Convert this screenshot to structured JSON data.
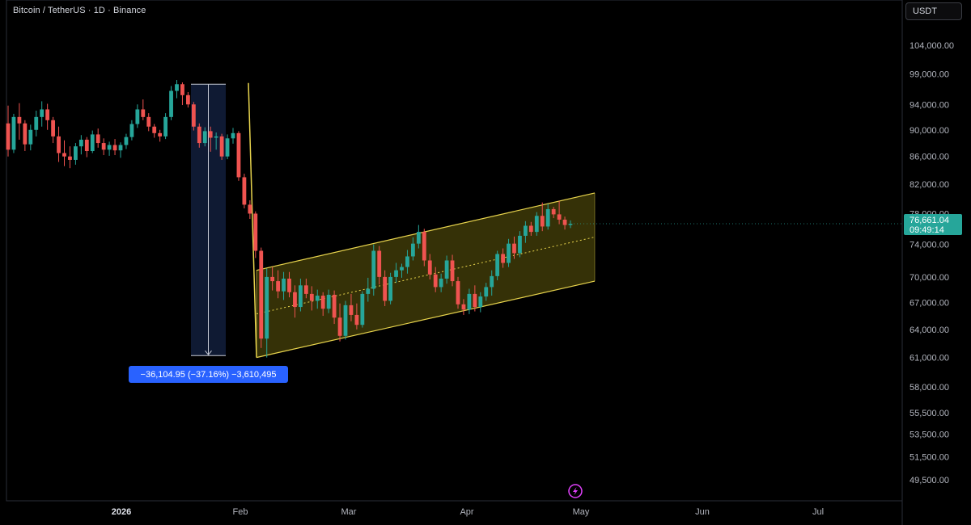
{
  "header": {
    "symbol_title": "Bitcoin / TetherUS · 1D · Binance",
    "currency_label": "USDT"
  },
  "colors": {
    "background": "#000000",
    "up_candle": "#26a69a",
    "down_candle": "#ef5350",
    "channel_line": "#e8d44d",
    "channel_fill": "#3b3608",
    "measure_fill": "#0f1a33",
    "measure_label_bg": "#2962ff",
    "price_tag_bg": "#26a69a",
    "axis_text": "#b2b5be"
  },
  "icons": {
    "bottom_center": "lightning-icon"
  },
  "chart_data": {
    "type": "candlestick",
    "title": "Bitcoin / TetherUS · 1D · Binance",
    "y_axis": {
      "ticks": [
        "104,000.00",
        "99,000.00",
        "94,000.00",
        "90,000.00",
        "86,000.00",
        "82,000.00",
        "78,000.00",
        "74,000.00",
        "70,000.00",
        "67,000.00",
        "64,000.00",
        "61,000.00",
        "58,000.00",
        "55,500.00",
        "53,500.00",
        "51,500.00",
        "49,500.00"
      ],
      "tick_values": [
        104000,
        99000,
        94000,
        90000,
        86000,
        82000,
        78000,
        74000,
        70000,
        67000,
        64000,
        61000,
        58000,
        55500,
        53500,
        51500,
        49500
      ],
      "scale": "log"
    },
    "x_axis": {
      "ticks": [
        "2026",
        "Feb",
        "Mar",
        "Apr",
        "May",
        "Jun",
        "Jul"
      ],
      "bold_ticks": [
        "2026"
      ]
    },
    "last_price": {
      "price": "76,661.04",
      "countdown": "09:49:14"
    },
    "measure": {
      "label": "−36,104.95 (−37.16%) −3,610,495",
      "from_price": 97300,
      "to_price": 61200
    },
    "channel": {
      "lower_start": 61000,
      "lower_end": 69500,
      "upper_start": 70800,
      "upper_end": 80800
    },
    "sell_line": {
      "from_price": 97500,
      "to_price": 61000
    },
    "candles": [
      [
        91000,
        93800,
        86000,
        87000
      ],
      [
        87000,
        92500,
        86500,
        92000
      ],
      [
        92000,
        94200,
        88500,
        91000
      ],
      [
        91000,
        91500,
        86800,
        87800
      ],
      [
        87800,
        90800,
        86900,
        90000
      ],
      [
        90000,
        93000,
        89000,
        92000
      ],
      [
        92000,
        94500,
        90500,
        93200
      ],
      [
        93200,
        94100,
        90000,
        91500
      ],
      [
        91500,
        92000,
        88000,
        89000
      ],
      [
        89000,
        90500,
        85200,
        86500
      ],
      [
        86500,
        88400,
        84600,
        86000
      ],
      [
        86000,
        87500,
        84300,
        85500
      ],
      [
        85500,
        88000,
        84800,
        87500
      ],
      [
        87500,
        89200,
        86300,
        88500
      ],
      [
        88500,
        88900,
        85900,
        86800
      ],
      [
        86800,
        89900,
        86500,
        89300
      ],
      [
        89300,
        90200,
        87300,
        88000
      ],
      [
        88000,
        88700,
        86200,
        87000
      ],
      [
        87000,
        88200,
        86100,
        87700
      ],
      [
        87700,
        88600,
        86200,
        86900
      ],
      [
        86900,
        88100,
        85800,
        87700
      ],
      [
        87700,
        89400,
        87100,
        88900
      ],
      [
        88900,
        91500,
        88400,
        90900
      ],
      [
        90900,
        94000,
        90300,
        93200
      ],
      [
        93200,
        94800,
        91500,
        92000
      ],
      [
        92000,
        92600,
        89800,
        90500
      ],
      [
        90500,
        90900,
        88800,
        89500
      ],
      [
        89500,
        90000,
        88200,
        89000
      ],
      [
        89000,
        92600,
        88600,
        92000
      ],
      [
        92000,
        97000,
        91500,
        96200
      ],
      [
        96200,
        98000,
        95000,
        97300
      ],
      [
        97300,
        97600,
        93900,
        95500
      ],
      [
        95500,
        96000,
        93500,
        94000
      ],
      [
        94000,
        94400,
        89900,
        90500
      ],
      [
        90500,
        91000,
        87300,
        88000
      ],
      [
        88000,
        90400,
        87500,
        89800
      ],
      [
        89800,
        90500,
        86700,
        88800
      ],
      [
        88800,
        89600,
        87000,
        89000
      ],
      [
        89000,
        89400,
        85500,
        86000
      ],
      [
        86000,
        89300,
        85600,
        88700
      ],
      [
        88700,
        90300,
        87900,
        89500
      ],
      [
        89500,
        89800,
        82500,
        83000
      ],
      [
        83000,
        83500,
        78700,
        79200
      ],
      [
        79200,
        79800,
        77300,
        78000
      ],
      [
        78000,
        78300,
        72300,
        73200
      ],
      [
        73200,
        73600,
        62000,
        63000
      ],
      [
        63000,
        71000,
        61000,
        70000
      ],
      [
        70000,
        71200,
        68400,
        69500
      ],
      [
        69500,
        70800,
        67500,
        68300
      ],
      [
        68300,
        70600,
        67300,
        69800
      ],
      [
        69800,
        70600,
        67600,
        68200
      ],
      [
        68200,
        69000,
        65300,
        66500
      ],
      [
        66500,
        69800,
        66000,
        69000
      ],
      [
        69000,
        69800,
        67500,
        68000
      ],
      [
        68000,
        68900,
        66100,
        67200
      ],
      [
        67200,
        68500,
        66300,
        67800
      ],
      [
        67800,
        68200,
        65500,
        66300
      ],
      [
        66300,
        68500,
        65800,
        67900
      ],
      [
        67900,
        68400,
        64600,
        65300
      ],
      [
        65300,
        66900,
        62700,
        63300
      ],
      [
        63300,
        67200,
        62900,
        66700
      ],
      [
        66700,
        68000,
        64900,
        65600
      ],
      [
        65600,
        66900,
        64000,
        64500
      ],
      [
        64500,
        68300,
        64200,
        68000
      ],
      [
        68000,
        69900,
        67100,
        68600
      ],
      [
        68600,
        74000,
        67800,
        73200
      ],
      [
        73200,
        73800,
        69100,
        70000
      ],
      [
        70000,
        70800,
        66600,
        67200
      ],
      [
        67200,
        70500,
        66800,
        70000
      ],
      [
        70000,
        71700,
        69300,
        70800
      ],
      [
        70800,
        71600,
        69900,
        71200
      ],
      [
        71200,
        73300,
        70400,
        72500
      ],
      [
        72500,
        74900,
        72000,
        74100
      ],
      [
        74100,
        76500,
        73500,
        75600
      ],
      [
        75600,
        76000,
        71300,
        72000
      ],
      [
        72000,
        72800,
        69700,
        70300
      ],
      [
        70300,
        71200,
        68200,
        68800
      ],
      [
        68800,
        70400,
        68200,
        69800
      ],
      [
        69800,
        72600,
        69200,
        72000
      ],
      [
        72000,
        72700,
        68900,
        69500
      ],
      [
        69500,
        70000,
        66300,
        66800
      ],
      [
        66800,
        67400,
        65600,
        66200
      ],
      [
        66200,
        68600,
        65700,
        68000
      ],
      [
        68000,
        69000,
        66000,
        66500
      ],
      [
        66500,
        68200,
        65900,
        67700
      ],
      [
        67700,
        69300,
        67200,
        68800
      ],
      [
        68800,
        70800,
        67800,
        70100
      ],
      [
        70100,
        73200,
        69600,
        72800
      ],
      [
        72800,
        73500,
        71100,
        71700
      ],
      [
        71700,
        74700,
        71200,
        74100
      ],
      [
        74100,
        75000,
        72200,
        72900
      ],
      [
        72900,
        75700,
        72400,
        75100
      ],
      [
        75100,
        77000,
        74200,
        76400
      ],
      [
        76400,
        76900,
        75100,
        75600
      ],
      [
        75600,
        78200,
        75100,
        77700
      ],
      [
        77700,
        79500,
        75700,
        76300
      ],
      [
        76300,
        79300,
        75900,
        78600
      ],
      [
        78600,
        78900,
        77400,
        77900
      ],
      [
        77900,
        79700,
        76600,
        77200
      ],
      [
        77200,
        77600,
        75900,
        76500
      ],
      [
        76500,
        77100,
        76100,
        76661
      ]
    ]
  }
}
